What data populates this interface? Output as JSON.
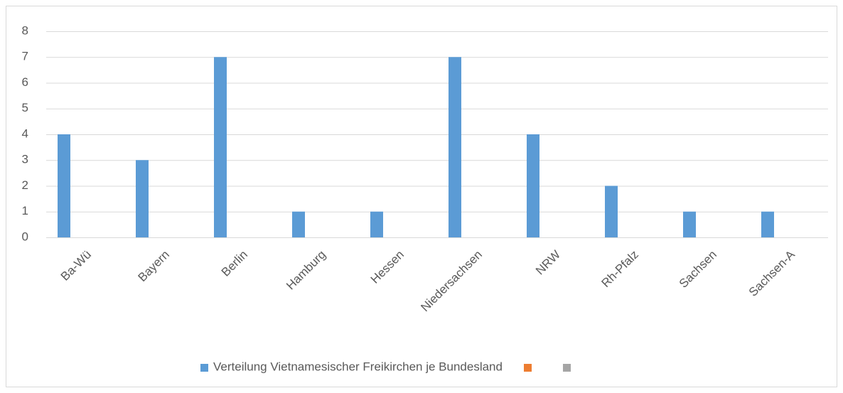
{
  "chart_data": {
    "type": "bar",
    "categories": [
      "Ba-Wü",
      "Bayern",
      "Berlin",
      "Hamburg",
      "Hessen",
      "Niedersachsen",
      "NRW",
      "Rh-Pfalz",
      "Sachsen",
      "Sachsen-A"
    ],
    "series": [
      {
        "name": "Verteilung Vietnamesischer Freikirchen je Bundesland",
        "color": "#5b9bd5",
        "values": [
          4,
          3,
          7,
          1,
          1,
          7,
          4,
          2,
          1,
          1
        ]
      },
      {
        "color": "#ed7d31"
      },
      {
        "color": "#a5a5a5"
      }
    ],
    "ylim": [
      0,
      8
    ],
    "yticks": [
      0,
      1,
      2,
      3,
      4,
      5,
      6,
      7,
      8
    ],
    "grid": true,
    "legend": "bottom"
  }
}
